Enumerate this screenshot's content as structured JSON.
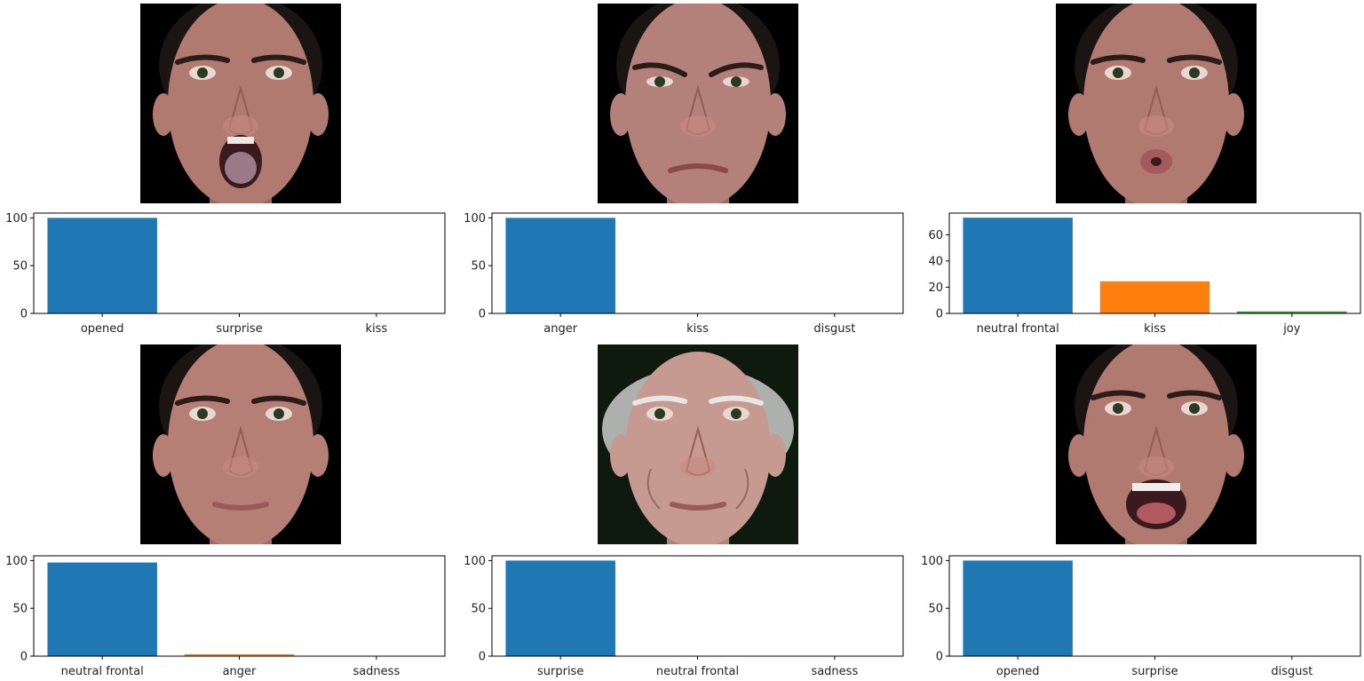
{
  "faces": [
    {
      "id": "face-1",
      "expression": "open-mouth",
      "skin": "#b07a70",
      "bg": "#000000",
      "hair": "#1a1412"
    },
    {
      "id": "face-2",
      "expression": "frown",
      "skin": "#b4807a",
      "bg": "#000000",
      "hair": "#1a1412"
    },
    {
      "id": "face-3",
      "expression": "pucker",
      "skin": "#b17a70",
      "bg": "#000000",
      "hair": "#1a1412"
    },
    {
      "id": "face-4",
      "expression": "neutral",
      "skin": "#b57f76",
      "bg": "#000000",
      "hair": "#1a1412"
    },
    {
      "id": "face-5",
      "expression": "neutral-old",
      "skin": "#c69a90",
      "bg": "#0d1a0d",
      "hair": "#d6d6d6"
    },
    {
      "id": "face-6",
      "expression": "wide-open-mouth",
      "skin": "#b07a70",
      "bg": "#000000",
      "hair": "#1a1412"
    }
  ],
  "chart_data": [
    {
      "type": "bar",
      "categories": [
        "opened",
        "surprise",
        "kiss"
      ],
      "values": [
        100,
        0,
        0
      ],
      "ylim": [
        0,
        105
      ],
      "yticks": [
        0,
        50,
        100
      ],
      "colors": [
        "#1f77b4",
        "#ff7f0e",
        "#2ca02c"
      ]
    },
    {
      "type": "bar",
      "categories": [
        "anger",
        "kiss",
        "disgust"
      ],
      "values": [
        100,
        0,
        0
      ],
      "ylim": [
        0,
        105
      ],
      "yticks": [
        0,
        50,
        100
      ],
      "colors": [
        "#1f77b4",
        "#ff7f0e",
        "#2ca02c"
      ]
    },
    {
      "type": "bar",
      "categories": [
        "neutral frontal",
        "kiss",
        "joy"
      ],
      "values": [
        73,
        24.5,
        1.5
      ],
      "ylim": [
        0,
        76.5
      ],
      "yticks": [
        0,
        20,
        40,
        60
      ],
      "colors": [
        "#1f77b4",
        "#ff7f0e",
        "#2ca02c"
      ]
    },
    {
      "type": "bar",
      "categories": [
        "neutral frontal",
        "anger",
        "sadness"
      ],
      "values": [
        98,
        2,
        0
      ],
      "ylim": [
        0,
        105
      ],
      "yticks": [
        0,
        50,
        100
      ],
      "colors": [
        "#1f77b4",
        "#ff7f0e",
        "#2ca02c"
      ]
    },
    {
      "type": "bar",
      "categories": [
        "surprise",
        "neutral frontal",
        "sadness"
      ],
      "values": [
        100,
        0,
        0
      ],
      "ylim": [
        0,
        105
      ],
      "yticks": [
        0,
        50,
        100
      ],
      "colors": [
        "#1f77b4",
        "#ff7f0e",
        "#2ca02c"
      ]
    },
    {
      "type": "bar",
      "categories": [
        "opened",
        "surprise",
        "disgust"
      ],
      "values": [
        100,
        0,
        0
      ],
      "ylim": [
        0,
        105
      ],
      "yticks": [
        0,
        50,
        100
      ],
      "colors": [
        "#1f77b4",
        "#ff7f0e",
        "#2ca02c"
      ]
    }
  ]
}
